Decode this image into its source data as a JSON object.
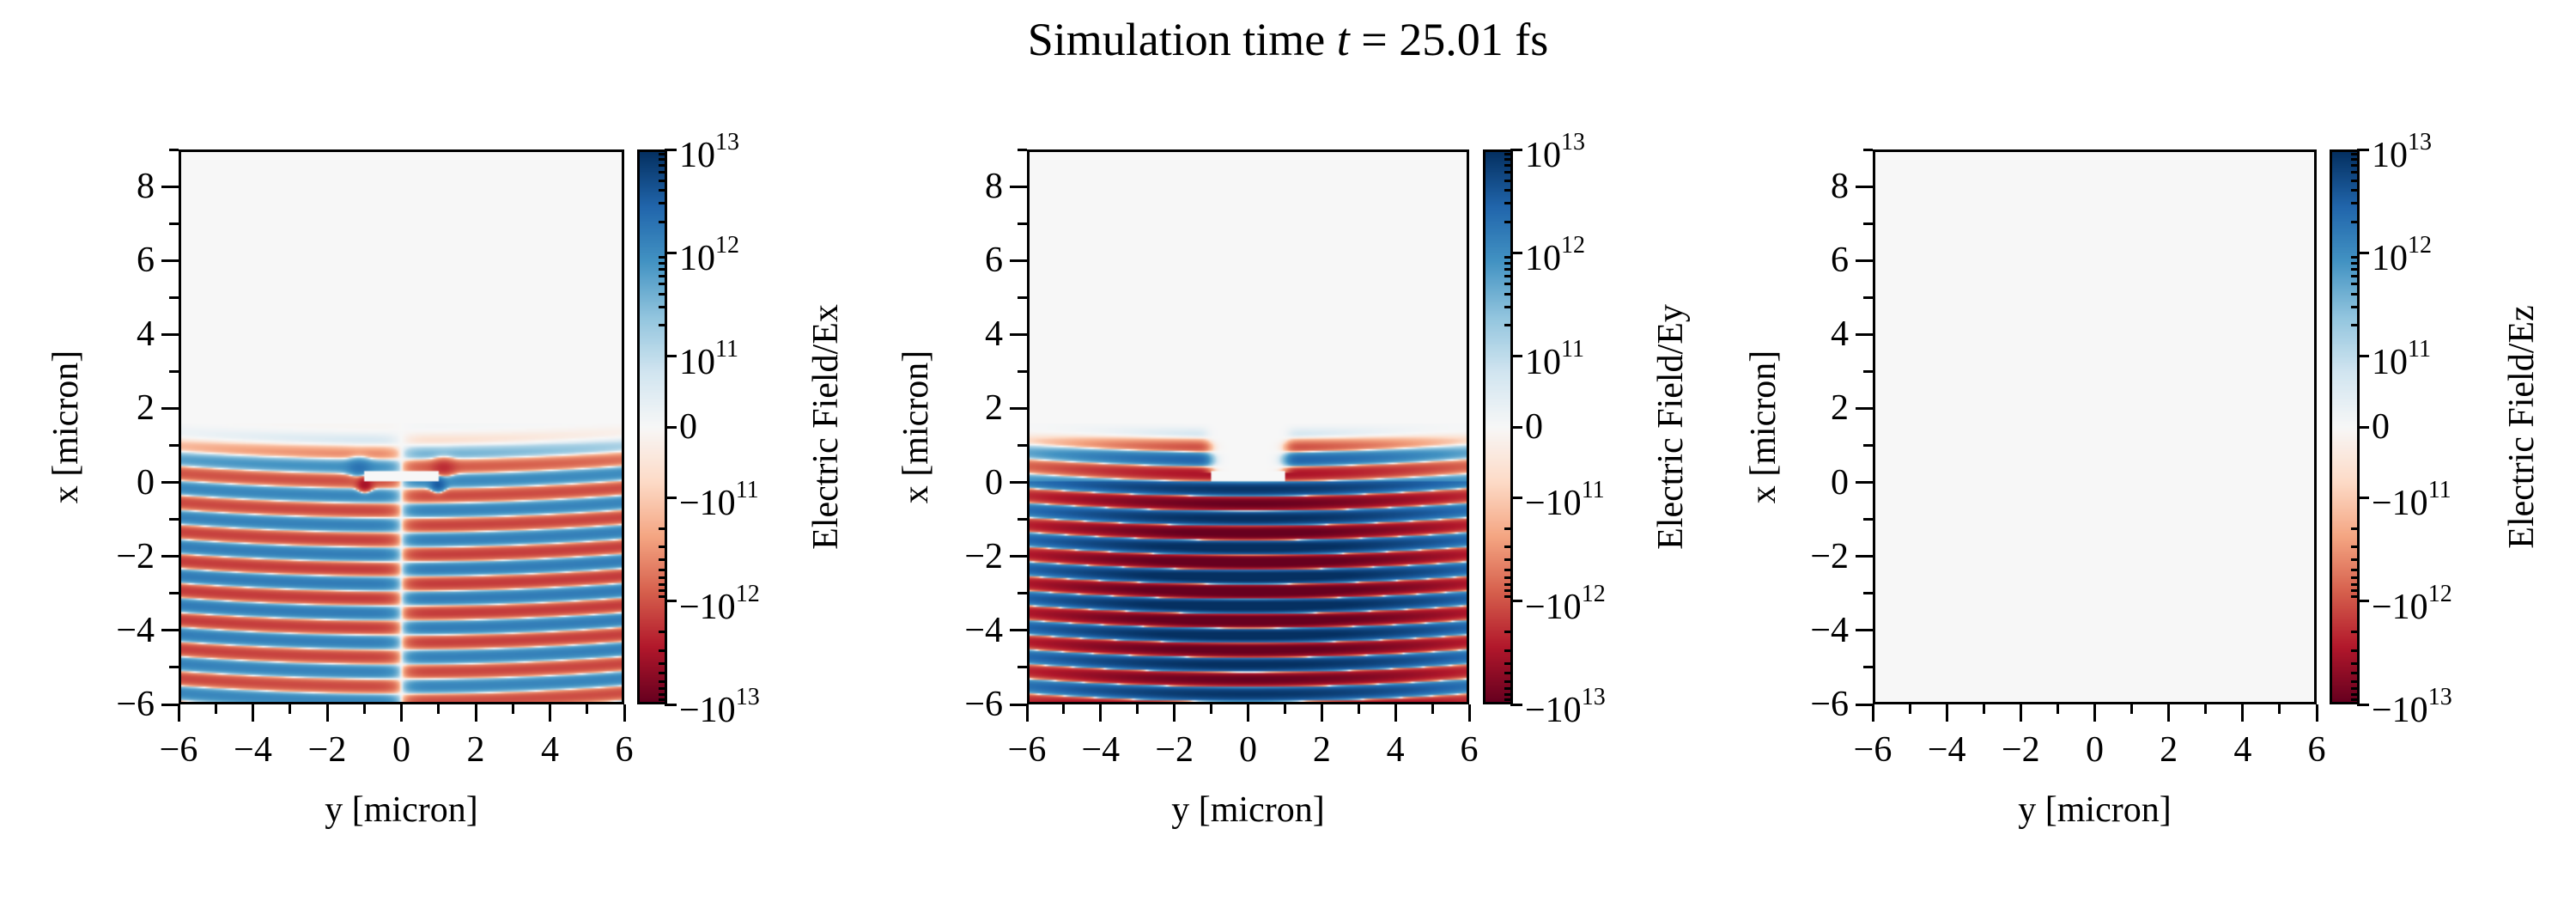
{
  "figure": {
    "title_prefix": "Simulation time ",
    "title_var": "t",
    "title_suffix": " = 25.01 fs"
  },
  "chart_data": [
    {
      "type": "heatmap",
      "xlabel": "y [micron]",
      "ylabel": "x [micron]",
      "xlim": [
        -6,
        6
      ],
      "ylim": [
        -6,
        9
      ],
      "xticks": [
        -6,
        -4,
        -2,
        0,
        2,
        4,
        6
      ],
      "xtick_labels": [
        "−6",
        "−4",
        "−2",
        "0",
        "2",
        "4",
        "6"
      ],
      "yticks": [
        -6,
        -4,
        -2,
        0,
        2,
        4,
        6,
        8
      ],
      "ytick_labels": [
        "−6",
        "−4",
        "−2",
        "0",
        "2",
        "4",
        "6",
        "8"
      ],
      "colormap": "RdBu_r",
      "norm": "symlog",
      "vlim": [
        -10000000000000.0,
        10000000000000.0
      ],
      "colorbar_label": "Electric Field/Ex",
      "colorbar_ticks": [
        {
          "value": 10000000000000.0,
          "base": "10",
          "exp": "13"
        },
        {
          "value": 1000000000000.0,
          "base": "10",
          "exp": "12"
        },
        {
          "value": 100000000000.0,
          "base": "10",
          "exp": "11"
        },
        {
          "value": 0,
          "base": "0",
          "exp": ""
        },
        {
          "value": -100000000000.0,
          "base": "−10",
          "exp": "11"
        },
        {
          "value": -1000000000000.0,
          "base": "−10",
          "exp": "12"
        },
        {
          "value": -10000000000000.0,
          "base": "−10",
          "exp": "13"
        }
      ],
      "field": "Ex"
    },
    {
      "type": "heatmap",
      "xlabel": "y [micron]",
      "ylabel": "x [micron]",
      "xlim": [
        -6,
        6
      ],
      "ylim": [
        -6,
        9
      ],
      "xticks": [
        -6,
        -4,
        -2,
        0,
        2,
        4,
        6
      ],
      "xtick_labels": [
        "−6",
        "−4",
        "−2",
        "0",
        "2",
        "4",
        "6"
      ],
      "yticks": [
        -6,
        -4,
        -2,
        0,
        2,
        4,
        6,
        8
      ],
      "ytick_labels": [
        "−6",
        "−4",
        "−2",
        "0",
        "2",
        "4",
        "6",
        "8"
      ],
      "colormap": "RdBu_r",
      "norm": "symlog",
      "vlim": [
        -10000000000000.0,
        10000000000000.0
      ],
      "colorbar_label": "Electric Field/Ey",
      "colorbar_ticks": [
        {
          "value": 10000000000000.0,
          "base": "10",
          "exp": "13"
        },
        {
          "value": 1000000000000.0,
          "base": "10",
          "exp": "12"
        },
        {
          "value": 100000000000.0,
          "base": "10",
          "exp": "11"
        },
        {
          "value": 0,
          "base": "0",
          "exp": ""
        },
        {
          "value": -100000000000.0,
          "base": "−10",
          "exp": "11"
        },
        {
          "value": -1000000000000.0,
          "base": "−10",
          "exp": "12"
        },
        {
          "value": -10000000000000.0,
          "base": "−10",
          "exp": "13"
        }
      ],
      "field": "Ey"
    },
    {
      "type": "heatmap",
      "xlabel": "y [micron]",
      "ylabel": "x [micron]",
      "xlim": [
        -6,
        6
      ],
      "ylim": [
        -6,
        9
      ],
      "xticks": [
        -6,
        -4,
        -2,
        0,
        2,
        4,
        6
      ],
      "xtick_labels": [
        "−6",
        "−4",
        "−2",
        "0",
        "2",
        "4",
        "6"
      ],
      "yticks": [
        -6,
        -4,
        -2,
        0,
        2,
        4,
        6,
        8
      ],
      "ytick_labels": [
        "−6",
        "−4",
        "−2",
        "0",
        "2",
        "4",
        "6",
        "8"
      ],
      "colormap": "RdBu_r",
      "norm": "symlog",
      "vlim": [
        -10000000000000.0,
        10000000000000.0
      ],
      "colorbar_label": "Electric Field/Ez",
      "colorbar_ticks": [
        {
          "value": 10000000000000.0,
          "base": "10",
          "exp": "13"
        },
        {
          "value": 1000000000000.0,
          "base": "10",
          "exp": "12"
        },
        {
          "value": 100000000000.0,
          "base": "10",
          "exp": "11"
        },
        {
          "value": 0,
          "base": "0",
          "exp": ""
        },
        {
          "value": -100000000000.0,
          "base": "−10",
          "exp": "11"
        },
        {
          "value": -1000000000000.0,
          "base": "−10",
          "exp": "12"
        },
        {
          "value": -10000000000000.0,
          "base": "−10",
          "exp": "13"
        }
      ],
      "field": "Ez"
    }
  ],
  "colors": {
    "cmap_stops": [
      "#67001f",
      "#b2182b",
      "#d6604d",
      "#f4a582",
      "#fddbc7",
      "#f7f7f7",
      "#d1e5f0",
      "#92c5de",
      "#4393c3",
      "#2166ac",
      "#053061"
    ]
  }
}
